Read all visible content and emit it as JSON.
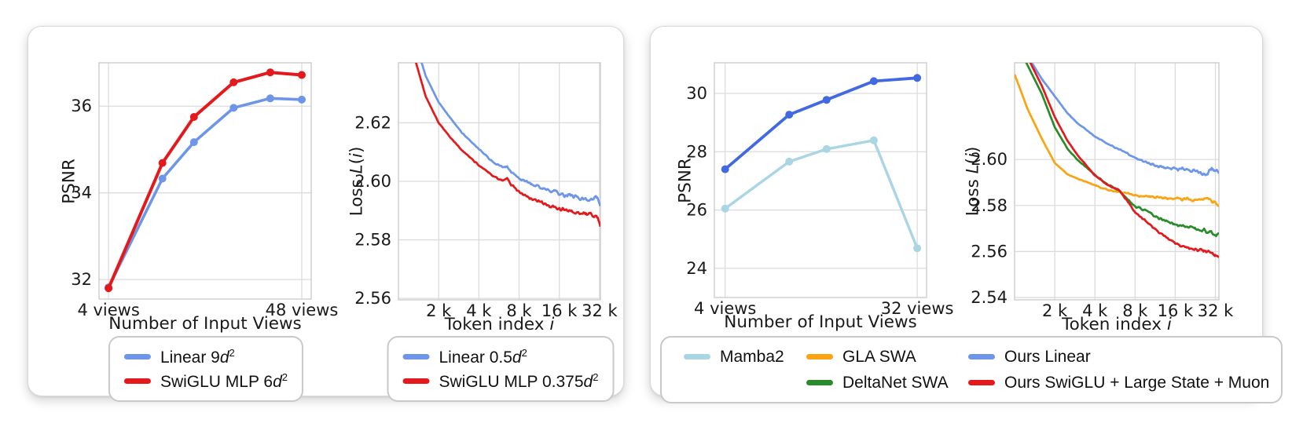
{
  "figure": {
    "background": "#ffffff",
    "card_border_color": "#d9d9d9",
    "grid_color": "#dcdcdc",
    "spine_color": "#cccccc",
    "text_color": "#1a1a1a"
  },
  "chart_data": [
    {
      "id": "left-psnr",
      "type": "line",
      "xscale": "log",
      "xlabel": "Number of Input Views",
      "ylabel": "PSNR",
      "grid": true,
      "x": [
        4,
        8,
        12,
        20,
        32,
        48
      ],
      "xlim": [
        3.54,
        54.2
      ],
      "ylim": [
        31.55,
        37.0
      ],
      "xticks": [
        {
          "v": 4,
          "label": "4 views"
        },
        {
          "v": 48,
          "label": "48 views"
        }
      ],
      "yticks": [
        {
          "v": 32,
          "label": "32"
        },
        {
          "v": 34,
          "label": "34"
        },
        {
          "v": 36,
          "label": "36"
        }
      ],
      "series": [
        {
          "name": "Linear 9*d*^{2}",
          "color": "#6d96e8",
          "marker": true,
          "linewidth": 3.6,
          "values": [
            31.82,
            34.33,
            35.17,
            35.96,
            36.18,
            36.15
          ]
        },
        {
          "name": "SwiGLU MLP 6*d*^{2}",
          "color": "#e3191c",
          "marker": true,
          "linewidth": 4,
          "values": [
            31.8,
            34.69,
            35.75,
            36.55,
            36.78,
            36.72
          ]
        }
      ]
    },
    {
      "id": "left-loss",
      "type": "line",
      "xscale": "log",
      "xlabel": "Token index *i*",
      "ylabel": "Loss *L*(*i*)",
      "grid": true,
      "xlim": [
        1000,
        32500
      ],
      "ylim": [
        2.5595,
        2.6405
      ],
      "xticks": [
        {
          "v": 2000,
          "label": "2 k"
        },
        {
          "v": 4000,
          "label": "4 k"
        },
        {
          "v": 8000,
          "label": "8 k"
        },
        {
          "v": 16000,
          "label": "16 k"
        },
        {
          "v": 32000,
          "label": "32 k"
        }
      ],
      "yticks": [
        {
          "v": 2.56,
          "label": "2.56"
        },
        {
          "v": 2.58,
          "label": "2.58"
        },
        {
          "v": 2.6,
          "label": "2.60"
        },
        {
          "v": 2.62,
          "label": "2.62"
        }
      ],
      "noise": {
        "max": 0.0026,
        "power": 1.6
      },
      "series": [
        {
          "name": "Linear 0.5*d*^{2}",
          "color": "#6d96e8",
          "linewidth": 2.7,
          "x": [
            1250,
            1600,
            2000,
            2500,
            3000,
            4000,
            5000,
            6000,
            6500,
            7000,
            8000,
            10000,
            12000,
            14000,
            16000,
            20000,
            24000,
            28000,
            31000,
            32500
          ],
          "values": [
            2.652,
            2.636,
            2.627,
            2.621,
            2.6165,
            2.611,
            2.6068,
            2.6048,
            2.605,
            2.6032,
            2.601,
            2.5988,
            2.5975,
            2.5968,
            2.5958,
            2.595,
            2.5942,
            2.5938,
            2.5945,
            2.5915
          ]
        },
        {
          "name": "SwiGLU MLP 0.375*d*^{2}",
          "color": "#e3191c",
          "linewidth": 2.7,
          "x": [
            1250,
            1600,
            2000,
            2500,
            3000,
            4000,
            5000,
            6000,
            6500,
            7000,
            8000,
            10000,
            12000,
            14000,
            16000,
            20000,
            24000,
            28000,
            31000,
            32500
          ],
          "values": [
            2.646,
            2.629,
            2.62,
            2.6145,
            2.6105,
            2.6055,
            2.6022,
            2.6002,
            2.601,
            2.5988,
            2.5962,
            2.594,
            2.5928,
            2.5915,
            2.5905,
            2.5898,
            2.5888,
            2.5888,
            2.5878,
            2.585
          ]
        }
      ]
    },
    {
      "id": "right-psnr",
      "type": "line",
      "xscale": "log",
      "xlabel": "Number of Input Views",
      "ylabel": "PSNR",
      "grid": true,
      "x": [
        4,
        8,
        12,
        20,
        32
      ],
      "xlim": [
        3.56,
        35.4
      ],
      "ylim": [
        23.0,
        31.05
      ],
      "xticks": [
        {
          "v": 4,
          "label": "4 views"
        },
        {
          "v": 32,
          "label": "32 views"
        }
      ],
      "yticks": [
        {
          "v": 24,
          "label": "24"
        },
        {
          "v": 26,
          "label": "26"
        },
        {
          "v": 28,
          "label": "28"
        },
        {
          "v": 30,
          "label": "30"
        }
      ],
      "series": [
        {
          "name": "Mamba2",
          "color": "#a9d5e5",
          "marker": true,
          "linewidth": 3.4,
          "values": [
            26.05,
            27.66,
            28.09,
            28.39,
            24.69
          ]
        },
        {
          "name": "Ours Linear",
          "color": "#4169e1",
          "marker": true,
          "linewidth": 3.8,
          "values": [
            27.4,
            29.27,
            29.78,
            30.42,
            30.53
          ]
        }
      ]
    },
    {
      "id": "right-loss",
      "type": "line",
      "xscale": "log",
      "xlabel": "Token index *i*",
      "ylabel": "Loss *L*(*i*)",
      "grid": true,
      "xlim": [
        1000,
        34000
      ],
      "ylim": [
        2.539,
        2.642
      ],
      "xticks": [
        {
          "v": 2000,
          "label": "2 k"
        },
        {
          "v": 4000,
          "label": "4 k"
        },
        {
          "v": 8000,
          "label": "8 k"
        },
        {
          "v": 16000,
          "label": "16 k"
        },
        {
          "v": 32000,
          "label": "32 k"
        }
      ],
      "yticks": [
        {
          "v": 2.54,
          "label": "2.54"
        },
        {
          "v": 2.56,
          "label": "2.56"
        },
        {
          "v": 2.58,
          "label": "2.58"
        },
        {
          "v": 2.6,
          "label": "2.60"
        }
      ],
      "noise": {
        "max": 0.0024,
        "power": 1.6
      },
      "series": [
        {
          "name": "Ours Linear",
          "color": "#6d96e8",
          "linewidth": 2.7,
          "x": [
            1250,
            1600,
            2000,
            2500,
            3000,
            4000,
            5000,
            6000,
            7000,
            8000,
            10000,
            12000,
            16000,
            20000,
            24000,
            27000,
            30000,
            34000
          ],
          "values": [
            2.645,
            2.635,
            2.6275,
            2.62,
            2.6155,
            2.61,
            2.6068,
            2.6045,
            2.6025,
            2.6008,
            2.5985,
            2.597,
            2.596,
            2.5955,
            2.5945,
            2.5935,
            2.596,
            2.594
          ]
        },
        {
          "name": "GLA SWA",
          "color": "#fca311",
          "linewidth": 2.7,
          "x": [
            1000,
            1250,
            1600,
            2000,
            2500,
            3000,
            4000,
            5000,
            6000,
            7000,
            8000,
            10000,
            12000,
            16000,
            20000,
            24000,
            28000,
            34000
          ],
          "values": [
            2.637,
            2.622,
            2.609,
            2.5985,
            2.5935,
            2.5915,
            2.5888,
            2.5868,
            2.586,
            2.5852,
            2.5845,
            2.5838,
            2.5835,
            2.583,
            2.5828,
            2.5825,
            2.5828,
            2.58
          ]
        },
        {
          "name": "DeltaNet SWA",
          "color": "#2a8b2a",
          "linewidth": 2.7,
          "x": [
            1000,
            1250,
            1600,
            2000,
            2500,
            3000,
            4000,
            5000,
            6000,
            7000,
            8000,
            10000,
            12000,
            16000,
            20000,
            24000,
            28000,
            34000
          ],
          "values": [
            2.652,
            2.641,
            2.6285,
            2.614,
            2.6045,
            2.5995,
            2.5934,
            2.589,
            2.5868,
            2.5828,
            2.5797,
            2.5772,
            2.5745,
            2.572,
            2.5705,
            2.5695,
            2.5688,
            2.567
          ]
        },
        {
          "name": "Ours SwiGLU + Large State + Muon",
          "color": "#e3191c",
          "linewidth": 2.7,
          "x": [
            1000,
            1250,
            1600,
            2000,
            2500,
            3000,
            4000,
            5000,
            6000,
            7000,
            8000,
            10000,
            12000,
            16000,
            20000,
            24000,
            28000,
            34000
          ],
          "values": [
            2.654,
            2.6445,
            2.632,
            2.6185,
            2.608,
            2.6015,
            2.593,
            2.5888,
            2.5868,
            2.582,
            2.577,
            2.5725,
            2.5685,
            2.5635,
            2.5615,
            2.5605,
            2.5598,
            2.5578
          ]
        }
      ]
    }
  ],
  "legends": [
    {
      "entries": [
        [
          {
            "c": 0,
            "s": 0
          }
        ],
        [
          {
            "c": 0,
            "s": 1
          }
        ]
      ]
    },
    {
      "entries": [
        [
          {
            "c": 1,
            "s": 0
          }
        ],
        [
          {
            "c": 1,
            "s": 1
          }
        ]
      ]
    },
    {
      "entries": [
        [
          {
            "c": 2,
            "s": 0
          },
          {
            "c": 3,
            "s": 1
          },
          {
            "c": 3,
            "s": 0
          }
        ],
        [
          null,
          {
            "c": 3,
            "s": 2
          },
          {
            "c": 3,
            "s": 3
          }
        ]
      ]
    }
  ]
}
